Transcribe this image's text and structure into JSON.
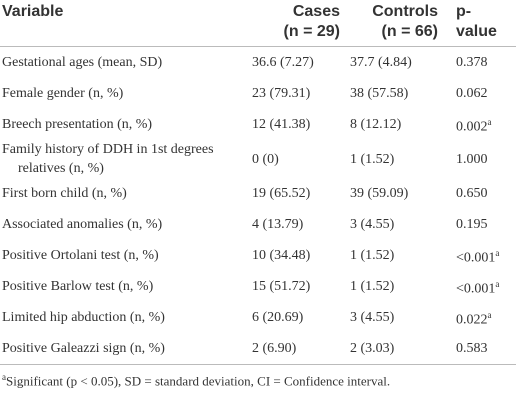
{
  "header": {
    "variable": "Variable",
    "cases": [
      "Cases",
      "(n = 29)"
    ],
    "controls": [
      "Controls",
      "(n = 66)"
    ],
    "p_value": [
      "p-",
      "value"
    ]
  },
  "rows": [
    {
      "variable": "Gestational ages (mean, SD)",
      "cases": "36.6 (7.27)",
      "controls": "37.7 (4.84)",
      "p": "0.378"
    },
    {
      "variable": "Female gender (n, %)",
      "cases": "23 (79.31)",
      "controls": "38 (57.58)",
      "p": "0.062"
    },
    {
      "variable": "Breech presentation (n, %)",
      "cases": "12 (41.38)",
      "controls": "8 (12.12)",
      "p": "0.002",
      "p_note": "a"
    },
    {
      "variable": "Family history of DDH in 1st degrees relatives (n, %)",
      "cases": "0 (0)",
      "controls": "1 (1.52)",
      "p": "1.000"
    },
    {
      "variable": "First born child (n, %)",
      "cases": "19 (65.52)",
      "controls": "39 (59.09)",
      "p": "0.650"
    },
    {
      "variable": "Associated anomalies (n, %)",
      "cases": "4 (13.79)",
      "controls": "3 (4.55)",
      "p": "0.195"
    },
    {
      "variable": "Positive Ortolani test (n, %)",
      "cases": "10 (34.48)",
      "controls": "1 (1.52)",
      "p": "<0.001",
      "p_note": "a"
    },
    {
      "variable": "Positive Barlow test (n, %)",
      "cases": "15 (51.72)",
      "controls": "1 (1.52)",
      "p": "<0.001",
      "p_note": "a"
    },
    {
      "variable": "Limited hip abduction (n, %)",
      "cases": "6 (20.69)",
      "controls": "3 (4.55)",
      "p": "0.022",
      "p_note": "a"
    },
    {
      "variable": "Positive Galeazzi sign (n, %)",
      "cases": "2 (6.90)",
      "controls": "2 (3.03)",
      "p": "0.583"
    }
  ],
  "footnote": {
    "mark": "a",
    "text": "Significant (p < 0.05), SD = standard deviation, CI = Confidence interval."
  }
}
